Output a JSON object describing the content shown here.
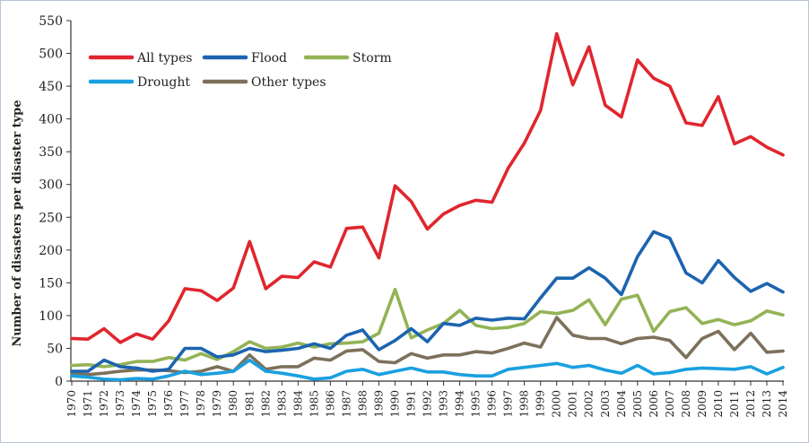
{
  "chart_data": {
    "type": "line",
    "title": "",
    "xlabel": "",
    "ylabel": "Number of disasters per disaster type",
    "ylim": [
      0,
      550
    ],
    "yticks": [
      0,
      50,
      100,
      150,
      200,
      250,
      300,
      350,
      400,
      450,
      500,
      550
    ],
    "legend_position": "top-left",
    "x": [
      1970,
      1971,
      1972,
      1973,
      1974,
      1975,
      1976,
      1977,
      1978,
      1979,
      1980,
      1981,
      1982,
      1983,
      1984,
      1985,
      1986,
      1987,
      1988,
      1989,
      1990,
      1991,
      1992,
      1993,
      1994,
      1995,
      1996,
      1997,
      1998,
      1999,
      2000,
      2001,
      2002,
      2003,
      2004,
      2005,
      2006,
      2007,
      2008,
      2009,
      2010,
      2011,
      2012,
      2013,
      2014
    ],
    "series": [
      {
        "name": "All types",
        "color": "#e0262e",
        "values": [
          65,
          64,
          80,
          59,
          72,
          64,
          92,
          141,
          138,
          123,
          142,
          213,
          141,
          160,
          158,
          182,
          174,
          233,
          235,
          188,
          298,
          274,
          232,
          255,
          268,
          276,
          273,
          325,
          363,
          413,
          530,
          452,
          510,
          421,
          403,
          490,
          462,
          450,
          394,
          390,
          434,
          362,
          373,
          357,
          345
        ]
      },
      {
        "name": "Flood",
        "color": "#1c64b0",
        "values": [
          15,
          15,
          32,
          22,
          20,
          15,
          18,
          50,
          50,
          37,
          40,
          50,
          45,
          47,
          50,
          57,
          50,
          70,
          78,
          48,
          62,
          80,
          60,
          88,
          85,
          96,
          93,
          96,
          95,
          127,
          157,
          157,
          173,
          157,
          132,
          190,
          228,
          218,
          165,
          150,
          184,
          158,
          137,
          149,
          136
        ]
      },
      {
        "name": "Storm",
        "color": "#93b355",
        "values": [
          24,
          25,
          22,
          25,
          30,
          30,
          36,
          32,
          42,
          33,
          45,
          60,
          50,
          52,
          58,
          52,
          57,
          58,
          60,
          73,
          140,
          66,
          78,
          88,
          108,
          85,
          80,
          82,
          88,
          106,
          103,
          108,
          124,
          86,
          125,
          131,
          76,
          106,
          112,
          88,
          94,
          86,
          92,
          107,
          101
        ]
      },
      {
        "name": "Drought",
        "color": "#1aa0e0",
        "values": [
          8,
          6,
          3,
          2,
          4,
          3,
          8,
          15,
          10,
          12,
          15,
          32,
          15,
          12,
          8,
          3,
          5,
          15,
          18,
          10,
          15,
          20,
          14,
          14,
          10,
          8,
          8,
          18,
          21,
          24,
          27,
          21,
          24,
          17,
          12,
          24,
          11,
          13,
          18,
          20,
          19,
          18,
          22,
          11,
          21
        ]
      },
      {
        "name": "Other types",
        "color": "#7d715b",
        "values": [
          12,
          10,
          12,
          15,
          17,
          17,
          16,
          13,
          15,
          22,
          15,
          40,
          18,
          22,
          22,
          35,
          32,
          46,
          48,
          30,
          28,
          42,
          35,
          40,
          40,
          45,
          43,
          50,
          58,
          52,
          97,
          70,
          65,
          65,
          57,
          65,
          67,
          62,
          36,
          65,
          76,
          48,
          73,
          44,
          46
        ]
      }
    ]
  }
}
